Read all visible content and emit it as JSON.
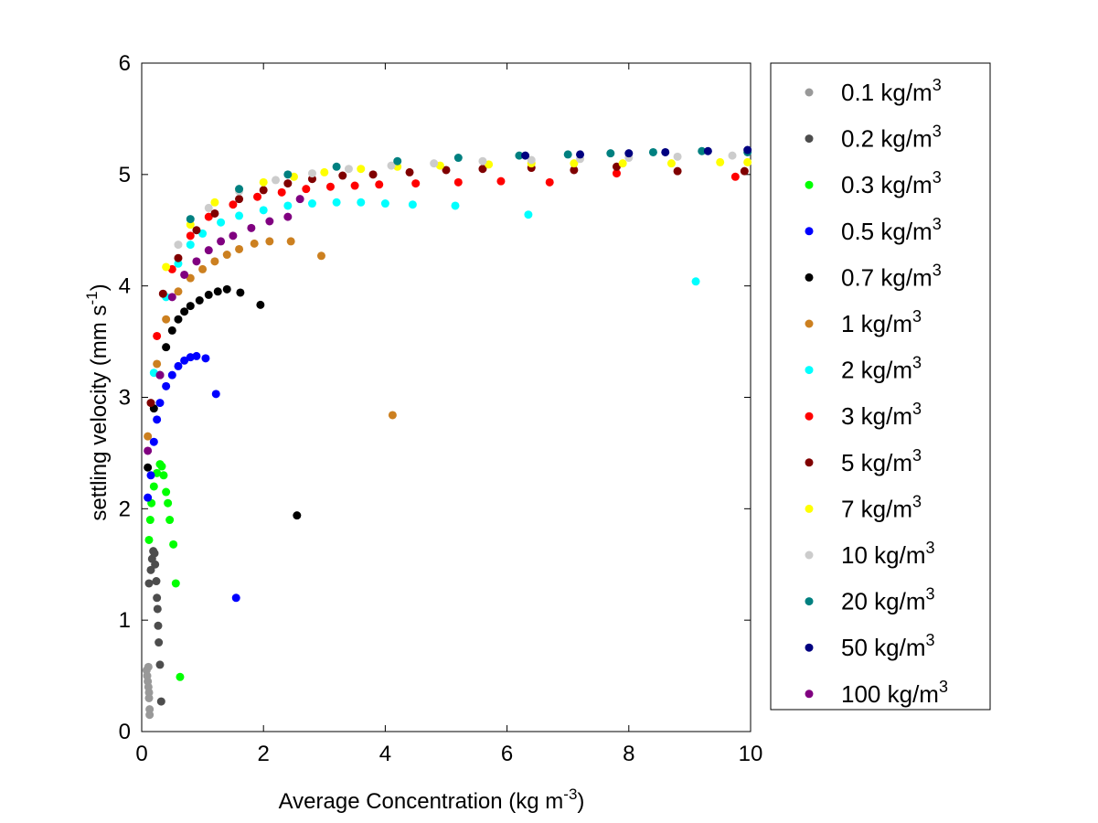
{
  "chart_data": {
    "type": "scatter",
    "xlabel": "Average Concentration (kg m",
    "xlabel_sup": "-3",
    "xlabel_end": ")",
    "ylabel": "settling velocity (mm s",
    "ylabel_sup": "-1",
    "ylabel_end": ")",
    "xlim": [
      0,
      10
    ],
    "ylim": [
      0,
      6
    ],
    "x_ticks": [
      "0",
      "2",
      "4",
      "6",
      "8",
      "10"
    ],
    "y_ticks": [
      "0",
      "1",
      "2",
      "3",
      "4",
      "5",
      "6"
    ],
    "grid": false,
    "legend_position": "right",
    "series": [
      {
        "name": "0.1 kg/m",
        "sup": "3",
        "color": "#999999",
        "points": [
          [
            0.08,
            0.55
          ],
          [
            0.09,
            0.5
          ],
          [
            0.1,
            0.45
          ],
          [
            0.11,
            0.4
          ],
          [
            0.12,
            0.35
          ],
          [
            0.12,
            0.3
          ],
          [
            0.13,
            0.2
          ],
          [
            0.13,
            0.15
          ],
          [
            0.11,
            0.58
          ]
        ]
      },
      {
        "name": "0.2 kg/m",
        "sup": "3",
        "color": "#4d4d4d",
        "points": [
          [
            0.12,
            1.33
          ],
          [
            0.15,
            1.45
          ],
          [
            0.17,
            1.55
          ],
          [
            0.19,
            1.62
          ],
          [
            0.21,
            1.6
          ],
          [
            0.22,
            1.5
          ],
          [
            0.24,
            1.35
          ],
          [
            0.25,
            1.2
          ],
          [
            0.26,
            1.1
          ],
          [
            0.27,
            0.95
          ],
          [
            0.28,
            0.8
          ],
          [
            0.3,
            0.6
          ],
          [
            0.32,
            0.27
          ]
        ]
      },
      {
        "name": "0.3 kg/m",
        "sup": "3",
        "color": "#00ff00",
        "points": [
          [
            0.12,
            1.72
          ],
          [
            0.14,
            1.9
          ],
          [
            0.16,
            2.05
          ],
          [
            0.2,
            2.2
          ],
          [
            0.25,
            2.32
          ],
          [
            0.3,
            2.4
          ],
          [
            0.33,
            2.38
          ],
          [
            0.36,
            2.3
          ],
          [
            0.4,
            2.15
          ],
          [
            0.43,
            2.05
          ],
          [
            0.46,
            1.9
          ],
          [
            0.52,
            1.68
          ],
          [
            0.56,
            1.33
          ],
          [
            0.63,
            0.49
          ]
        ]
      },
      {
        "name": "0.5 kg/m",
        "sup": "3",
        "color": "#0000ff",
        "points": [
          [
            0.1,
            2.1
          ],
          [
            0.15,
            2.3
          ],
          [
            0.2,
            2.6
          ],
          [
            0.25,
            2.8
          ],
          [
            0.3,
            2.95
          ],
          [
            0.4,
            3.1
          ],
          [
            0.5,
            3.2
          ],
          [
            0.6,
            3.28
          ],
          [
            0.7,
            3.33
          ],
          [
            0.8,
            3.36
          ],
          [
            0.9,
            3.37
          ],
          [
            1.05,
            3.35
          ],
          [
            1.22,
            3.03
          ],
          [
            1.55,
            1.2
          ]
        ]
      },
      {
        "name": "0.7 kg/m",
        "sup": "3",
        "color": "#000000",
        "points": [
          [
            0.1,
            2.37
          ],
          [
            0.2,
            2.9
          ],
          [
            0.3,
            3.2
          ],
          [
            0.4,
            3.45
          ],
          [
            0.5,
            3.6
          ],
          [
            0.6,
            3.7
          ],
          [
            0.7,
            3.77
          ],
          [
            0.8,
            3.82
          ],
          [
            0.95,
            3.87
          ],
          [
            1.1,
            3.92
          ],
          [
            1.25,
            3.95
          ],
          [
            1.4,
            3.97
          ],
          [
            1.62,
            3.94
          ],
          [
            1.95,
            3.83
          ],
          [
            2.55,
            1.94
          ]
        ]
      },
      {
        "name": "1 kg/m",
        "sup": "3",
        "color": "#cc8020",
        "points": [
          [
            0.1,
            2.65
          ],
          [
            0.25,
            3.3
          ],
          [
            0.4,
            3.7
          ],
          [
            0.6,
            3.95
          ],
          [
            0.8,
            4.07
          ],
          [
            1.0,
            4.15
          ],
          [
            1.2,
            4.22
          ],
          [
            1.4,
            4.28
          ],
          [
            1.6,
            4.33
          ],
          [
            1.85,
            4.38
          ],
          [
            2.1,
            4.4
          ],
          [
            2.45,
            4.4
          ],
          [
            2.95,
            4.27
          ],
          [
            4.12,
            2.84
          ]
        ]
      },
      {
        "name": "2 kg/m",
        "sup": "3",
        "color": "#00ffff",
        "points": [
          [
            0.2,
            3.22
          ],
          [
            0.4,
            3.9
          ],
          [
            0.6,
            4.2
          ],
          [
            0.8,
            4.37
          ],
          [
            1.0,
            4.47
          ],
          [
            1.3,
            4.57
          ],
          [
            1.6,
            4.63
          ],
          [
            2.0,
            4.68
          ],
          [
            2.4,
            4.72
          ],
          [
            2.8,
            4.74
          ],
          [
            3.2,
            4.75
          ],
          [
            3.6,
            4.75
          ],
          [
            4.0,
            4.74
          ],
          [
            4.45,
            4.73
          ],
          [
            5.15,
            4.72
          ],
          [
            6.35,
            4.64
          ],
          [
            9.1,
            4.04
          ]
        ]
      },
      {
        "name": "3 kg/m",
        "sup": "3",
        "color": "#ff0000",
        "points": [
          [
            0.25,
            3.55
          ],
          [
            0.5,
            4.15
          ],
          [
            0.8,
            4.45
          ],
          [
            1.1,
            4.62
          ],
          [
            1.5,
            4.73
          ],
          [
            1.9,
            4.8
          ],
          [
            2.3,
            4.84
          ],
          [
            2.7,
            4.87
          ],
          [
            3.1,
            4.89
          ],
          [
            3.5,
            4.9
          ],
          [
            3.9,
            4.91
          ],
          [
            4.5,
            4.92
          ],
          [
            5.2,
            4.93
          ],
          [
            5.9,
            4.94
          ],
          [
            6.7,
            4.93
          ],
          [
            7.8,
            5.01
          ],
          [
            9.75,
            4.98
          ]
        ]
      },
      {
        "name": "5 kg/m",
        "sup": "3",
        "color": "#800000",
        "points": [
          [
            0.15,
            2.95
          ],
          [
            0.35,
            3.93
          ],
          [
            0.6,
            4.25
          ],
          [
            0.9,
            4.5
          ],
          [
            1.2,
            4.65
          ],
          [
            1.6,
            4.78
          ],
          [
            2.0,
            4.86
          ],
          [
            2.4,
            4.92
          ],
          [
            2.8,
            4.96
          ],
          [
            3.3,
            4.99
          ],
          [
            3.8,
            5.0
          ],
          [
            4.4,
            5.02
          ],
          [
            5.0,
            5.04
          ],
          [
            5.6,
            5.05
          ],
          [
            6.4,
            5.06
          ],
          [
            7.1,
            5.04
          ],
          [
            7.8,
            5.07
          ],
          [
            8.8,
            5.03
          ],
          [
            9.9,
            5.03
          ]
        ]
      },
      {
        "name": "7 kg/m",
        "sup": "3",
        "color": "#ffff00",
        "points": [
          [
            0.4,
            4.17
          ],
          [
            0.8,
            4.55
          ],
          [
            1.2,
            4.75
          ],
          [
            1.6,
            4.86
          ],
          [
            2.0,
            4.93
          ],
          [
            2.5,
            4.98
          ],
          [
            3.0,
            5.02
          ],
          [
            3.6,
            5.05
          ],
          [
            4.2,
            5.07
          ],
          [
            4.9,
            5.08
          ],
          [
            5.7,
            5.09
          ],
          [
            6.4,
            5.1
          ],
          [
            7.1,
            5.1
          ],
          [
            7.9,
            5.1
          ],
          [
            8.7,
            5.1
          ],
          [
            9.5,
            5.11
          ],
          [
            9.95,
            5.11
          ]
        ]
      },
      {
        "name": "10 kg/m",
        "sup": "3",
        "color": "#cccccc",
        "points": [
          [
            0.6,
            4.37
          ],
          [
            1.1,
            4.7
          ],
          [
            1.6,
            4.85
          ],
          [
            2.2,
            4.95
          ],
          [
            2.8,
            5.01
          ],
          [
            3.4,
            5.05
          ],
          [
            4.1,
            5.08
          ],
          [
            4.8,
            5.1
          ],
          [
            5.6,
            5.12
          ],
          [
            6.4,
            5.13
          ],
          [
            7.2,
            5.14
          ],
          [
            8.0,
            5.15
          ],
          [
            8.8,
            5.16
          ],
          [
            9.7,
            5.17
          ]
        ]
      },
      {
        "name": "20 kg/m",
        "sup": "3",
        "color": "#008080",
        "points": [
          [
            0.8,
            4.6
          ],
          [
            1.6,
            4.87
          ],
          [
            2.4,
            5.0
          ],
          [
            3.2,
            5.07
          ],
          [
            4.2,
            5.12
          ],
          [
            5.2,
            5.15
          ],
          [
            6.2,
            5.17
          ],
          [
            7.0,
            5.18
          ],
          [
            7.7,
            5.19
          ],
          [
            8.4,
            5.2
          ],
          [
            9.2,
            5.21
          ],
          [
            9.95,
            5.2
          ]
        ]
      },
      {
        "name": "50 kg/m",
        "sup": "3",
        "color": "#000080",
        "points": [
          [
            6.3,
            5.17
          ],
          [
            7.2,
            5.18
          ],
          [
            8.0,
            5.19
          ],
          [
            8.6,
            5.2
          ],
          [
            9.3,
            5.21
          ],
          [
            9.95,
            5.22
          ]
        ]
      },
      {
        "name": "100 kg/m",
        "sup": "3",
        "color": "#800080",
        "points": [
          [
            0.1,
            2.52
          ],
          [
            0.3,
            3.2
          ],
          [
            0.5,
            3.9
          ],
          [
            0.7,
            4.1
          ],
          [
            0.9,
            4.22
          ],
          [
            1.1,
            4.32
          ],
          [
            1.3,
            4.4
          ],
          [
            1.5,
            4.45
          ],
          [
            1.8,
            4.52
          ],
          [
            2.1,
            4.58
          ],
          [
            2.4,
            4.62
          ],
          [
            2.6,
            4.78
          ]
        ]
      }
    ]
  }
}
